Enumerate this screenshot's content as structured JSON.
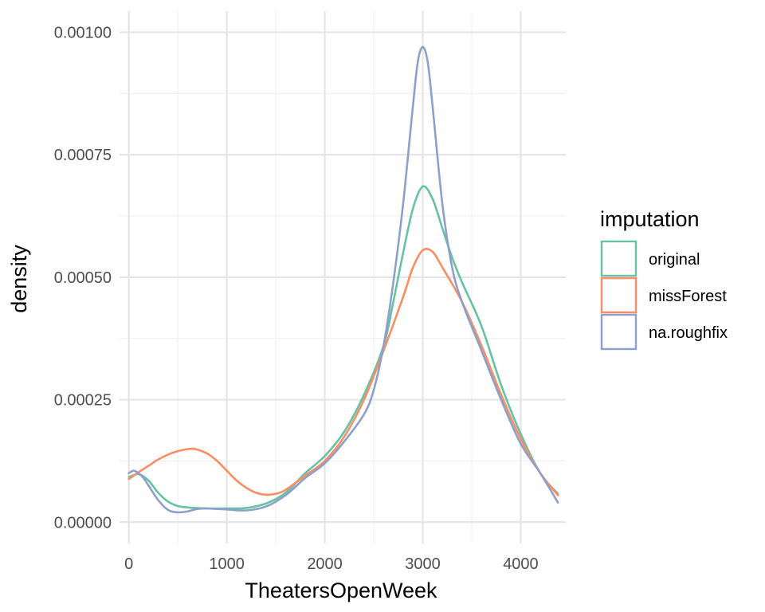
{
  "chart_data": {
    "type": "line",
    "title": "",
    "xlabel": "TheatersOpenWeek",
    "ylabel": "density",
    "xlim": [
      -95,
      4460
    ],
    "ylim": [
      -4.35e-05,
      0.001043
    ],
    "x_ticks": [
      0,
      1000,
      2000,
      3000,
      4000
    ],
    "x_tick_labels": [
      "0",
      "1000",
      "2000",
      "3000",
      "4000"
    ],
    "y_ticks": [
      0,
      0.00025,
      0.0005,
      0.00075,
      0.001
    ],
    "y_tick_labels": [
      "0.00000",
      "0.00025",
      "0.00050",
      "0.00075",
      "0.00100"
    ],
    "grid": true,
    "legend": {
      "title": "imputation",
      "position": "right"
    },
    "series": [
      {
        "name": "original",
        "color": "#66C2A5",
        "x": [
          0,
          100,
          200,
          300,
          400,
          500,
          600,
          800,
          1000,
          1200,
          1400,
          1600,
          1800,
          2000,
          2200,
          2400,
          2600,
          2700,
          2800,
          2900,
          3000,
          3100,
          3200,
          3300,
          3400,
          3600,
          3800,
          4000,
          4200,
          4380
        ],
        "y": [
          9.2e-05,
          9.8e-05,
          8.5e-05,
          6e-05,
          4.2e-05,
          3.3e-05,
          3e-05,
          2.8e-05,
          2.8e-05,
          2.9e-05,
          3.8e-05,
          6e-05,
          0.0001,
          0.000135,
          0.000185,
          0.00026,
          0.00036,
          0.00045,
          0.00055,
          0.00064,
          0.000685,
          0.00066,
          0.0006,
          0.00054,
          0.00049,
          0.0004,
          0.00028,
          0.00018,
          0.0001,
          5.8e-05
        ]
      },
      {
        "name": "missForest",
        "color": "#FC8D62",
        "x": [
          0,
          100,
          200,
          300,
          400,
          500,
          600,
          650,
          700,
          800,
          900,
          1000,
          1100,
          1200,
          1300,
          1400,
          1500,
          1600,
          1800,
          2000,
          2200,
          2400,
          2600,
          2800,
          2900,
          3000,
          3100,
          3200,
          3400,
          3600,
          3800,
          4000,
          4200,
          4380
        ],
        "y": [
          8.8e-05,
          0.000102,
          0.000115,
          0.000128,
          0.000138,
          0.000145,
          0.000149,
          0.00015,
          0.000148,
          0.00014,
          0.000125,
          0.000105,
          8.5e-05,
          7e-05,
          6e-05,
          5.6e-05,
          5.8e-05,
          6.6e-05,
          9.5e-05,
          0.000125,
          0.000175,
          0.00025,
          0.00035,
          0.00046,
          0.00052,
          0.000555,
          0.000552,
          0.00052,
          0.00045,
          0.00036,
          0.00026,
          0.00017,
          0.0001,
          5.5e-05
        ]
      },
      {
        "name": "na.roughfix",
        "color": "#8DA0CB",
        "x": [
          0,
          50,
          100,
          150,
          200,
          300,
          400,
          500,
          600,
          700,
          800,
          1000,
          1200,
          1400,
          1600,
          1800,
          2000,
          2200,
          2400,
          2500,
          2600,
          2700,
          2800,
          2900,
          2950,
          3000,
          3050,
          3100,
          3200,
          3300,
          3400,
          3600,
          3800,
          4000,
          4200,
          4380
        ],
        "y": [
          0.0001,
          0.000105,
          0.0001,
          9e-05,
          7.5e-05,
          4.5e-05,
          2.5e-05,
          2e-05,
          2.2e-05,
          2.7e-05,
          2.8e-05,
          2.6e-05,
          2.4e-05,
          3.2e-05,
          5.5e-05,
          9e-05,
          0.00012,
          0.000165,
          0.00022,
          0.00027,
          0.00036,
          0.00049,
          0.00065,
          0.00085,
          0.00094,
          0.00097,
          0.00094,
          0.00085,
          0.00065,
          0.00052,
          0.00045,
          0.00035,
          0.00025,
          0.00016,
          0.0001,
          4e-05
        ]
      }
    ]
  }
}
